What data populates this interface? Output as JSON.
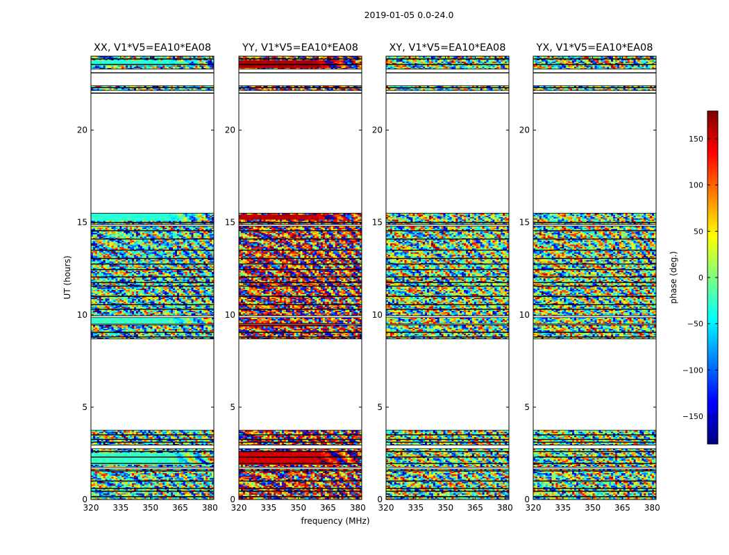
{
  "figure": {
    "suptitle": "2019-01-05 0.0-24.0"
  },
  "chart_data": {
    "type": "heatmap",
    "suptitle": "2019-01-05 0.0-24.0",
    "xlabel": "frequency (MHz)",
    "ylabel": "UT (hours)",
    "xlim": [
      320,
      382
    ],
    "ylim": [
      0,
      24
    ],
    "x_ticks": [
      320,
      335,
      350,
      365,
      380
    ],
    "y_ticks": [
      0,
      5,
      10,
      15,
      20
    ],
    "colorbar": {
      "label": "phase (deg.)",
      "range": [
        -180,
        180
      ],
      "ticks": [
        150,
        100,
        50,
        0,
        -50,
        -100,
        -150
      ],
      "tick_labels": [
        "150",
        "100",
        "50",
        "0",
        "−50",
        "−100",
        "−150"
      ],
      "colormap": "jet",
      "colors": [
        "#00007f",
        "#0000ff",
        "#007fff",
        "#00ffff",
        "#7fff7f",
        "#ffff00",
        "#ff7f00",
        "#ff0000",
        "#7f0000"
      ]
    },
    "panels": [
      {
        "title": "XX, V1*V5=EA10*EA08",
        "phase_offset": -30,
        "coherent_bands": [
          [
            9.5,
            9.85,
            -25
          ],
          [
            15.1,
            15.5,
            -30
          ],
          [
            1.9,
            2.5,
            -25
          ],
          [
            23.5,
            23.8,
            -30
          ]
        ]
      },
      {
        "title": "YY, V1*V5=EA10*EA08",
        "phase_offset": 140,
        "coherent_bands": [
          [
            9.35,
            9.55,
            165
          ],
          [
            15.2,
            15.45,
            160
          ],
          [
            1.9,
            2.6,
            150
          ],
          [
            23.4,
            23.8,
            165
          ]
        ]
      },
      {
        "title": "XY, V1*V5=EA10*EA08",
        "phase_offset": 0,
        "coherent_bands": []
      },
      {
        "title": "YX, V1*V5=EA10*EA08",
        "phase_offset": 0,
        "coherent_bands": []
      }
    ],
    "data_time_ranges": [
      [
        0,
        1.65
      ],
      [
        1.75,
        2.75
      ],
      [
        2.95,
        3.75
      ],
      [
        8.7,
        9.45
      ],
      [
        9.5,
        9.85
      ],
      [
        9.95,
        14.8
      ],
      [
        14.9,
        15.5
      ],
      [
        22.15,
        22.4
      ],
      [
        23.3,
        24.0
      ]
    ],
    "gap_lines": [
      0.15,
      0.45,
      0.6,
      1.0,
      1.55,
      1.95,
      2.3,
      2.6,
      3.1,
      3.25,
      3.5,
      8.8,
      9.05,
      10.3,
      10.55,
      11.0,
      11.55,
      11.75,
      12.05,
      12.45,
      12.75,
      13.05,
      13.5,
      14.1,
      14.55,
      15.0,
      22.0,
      22.3,
      23.1,
      23.55,
      23.85
    ]
  }
}
